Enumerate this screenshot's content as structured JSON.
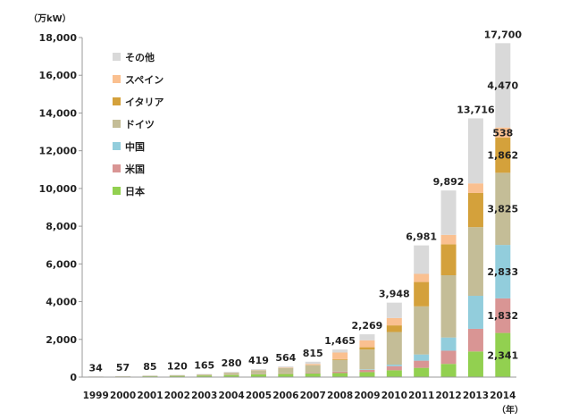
{
  "chart_data": {
    "type": "bar",
    "stacked": true,
    "ylabel": "（万kW）",
    "xlabel": "（年）",
    "ylim": [
      0,
      18000
    ],
    "yticks": [
      "0",
      "2,000",
      "4,000",
      "6,000",
      "8,000",
      "10,000",
      "12,000",
      "14,000",
      "16,000",
      "18,000"
    ],
    "grid": false,
    "legend_position": "top-left",
    "categories": [
      "1999",
      "2000",
      "2001",
      "2002",
      "2003",
      "2004",
      "2005",
      "2006",
      "2007",
      "2008",
      "2009",
      "2010",
      "2011",
      "2012",
      "2013",
      "2014"
    ],
    "totals": [
      34,
      57,
      85,
      120,
      165,
      280,
      419,
      564,
      815,
      1465,
      2269,
      3948,
      6981,
      9892,
      13716,
      17700
    ],
    "total_labels": [
      "34",
      "57",
      "85",
      "120",
      "165",
      "280",
      "419",
      "564",
      "815",
      "1,465",
      "2,269",
      "3,948",
      "6,981",
      "9,892",
      "13,716",
      "17,700"
    ],
    "series": [
      {
        "name": "日本",
        "color": "#92d050",
        "values": [
          20,
          33,
          45,
          64,
          86,
          113,
          142,
          171,
          192,
          214,
          263,
          362,
          491,
          700,
          1360,
          2341
        ]
      },
      {
        "name": "米国",
        "color": "#d99594",
        "values": [
          2,
          3,
          4,
          6,
          8,
          10,
          15,
          25,
          40,
          70,
          120,
          220,
          380,
          700,
          1200,
          1832
        ]
      },
      {
        "name": "中国",
        "color": "#92cddc",
        "values": [
          0,
          0,
          0,
          0,
          1,
          1,
          2,
          3,
          5,
          10,
          30,
          80,
          330,
          700,
          1750,
          2833
        ]
      },
      {
        "name": "ドイツ",
        "color": "#c4bd97",
        "values": [
          7,
          11,
          19,
          26,
          44,
          107,
          196,
          289,
          393,
          618,
          1050,
          1730,
          2550,
          3300,
          3640,
          3825
        ]
      },
      {
        "name": "イタリア",
        "color": "#d4a13b",
        "values": [
          0,
          0,
          0,
          0,
          0,
          0,
          0,
          1,
          5,
          40,
          120,
          350,
          1290,
          1640,
          1810,
          1862
        ]
      },
      {
        "name": "スペイン",
        "color": "#fac090",
        "values": [
          1,
          2,
          3,
          4,
          5,
          9,
          15,
          25,
          65,
          350,
          370,
          390,
          430,
          500,
          510,
          538
        ]
      },
      {
        "name": "その他",
        "color": "#d9d9d9",
        "values": [
          4,
          8,
          14,
          20,
          21,
          40,
          49,
          50,
          115,
          163,
          316,
          816,
          1510,
          2352,
          3446,
          4470
        ]
      }
    ],
    "segment_labels": [
      {
        "category": "2014",
        "series": "日本",
        "text": "2,341"
      },
      {
        "category": "2014",
        "series": "米国",
        "text": "1,832"
      },
      {
        "category": "2014",
        "series": "中国",
        "text": "2,833"
      },
      {
        "category": "2014",
        "series": "ドイツ",
        "text": "3,825"
      },
      {
        "category": "2014",
        "series": "イタリア",
        "text": "1,862"
      },
      {
        "category": "2014",
        "series": "スペイン",
        "text": "538"
      },
      {
        "category": "2014",
        "series": "その他",
        "text": "4,470"
      }
    ],
    "legend_order": [
      "その他",
      "スペイン",
      "イタリア",
      "ドイツ",
      "中国",
      "米国",
      "日本"
    ]
  }
}
